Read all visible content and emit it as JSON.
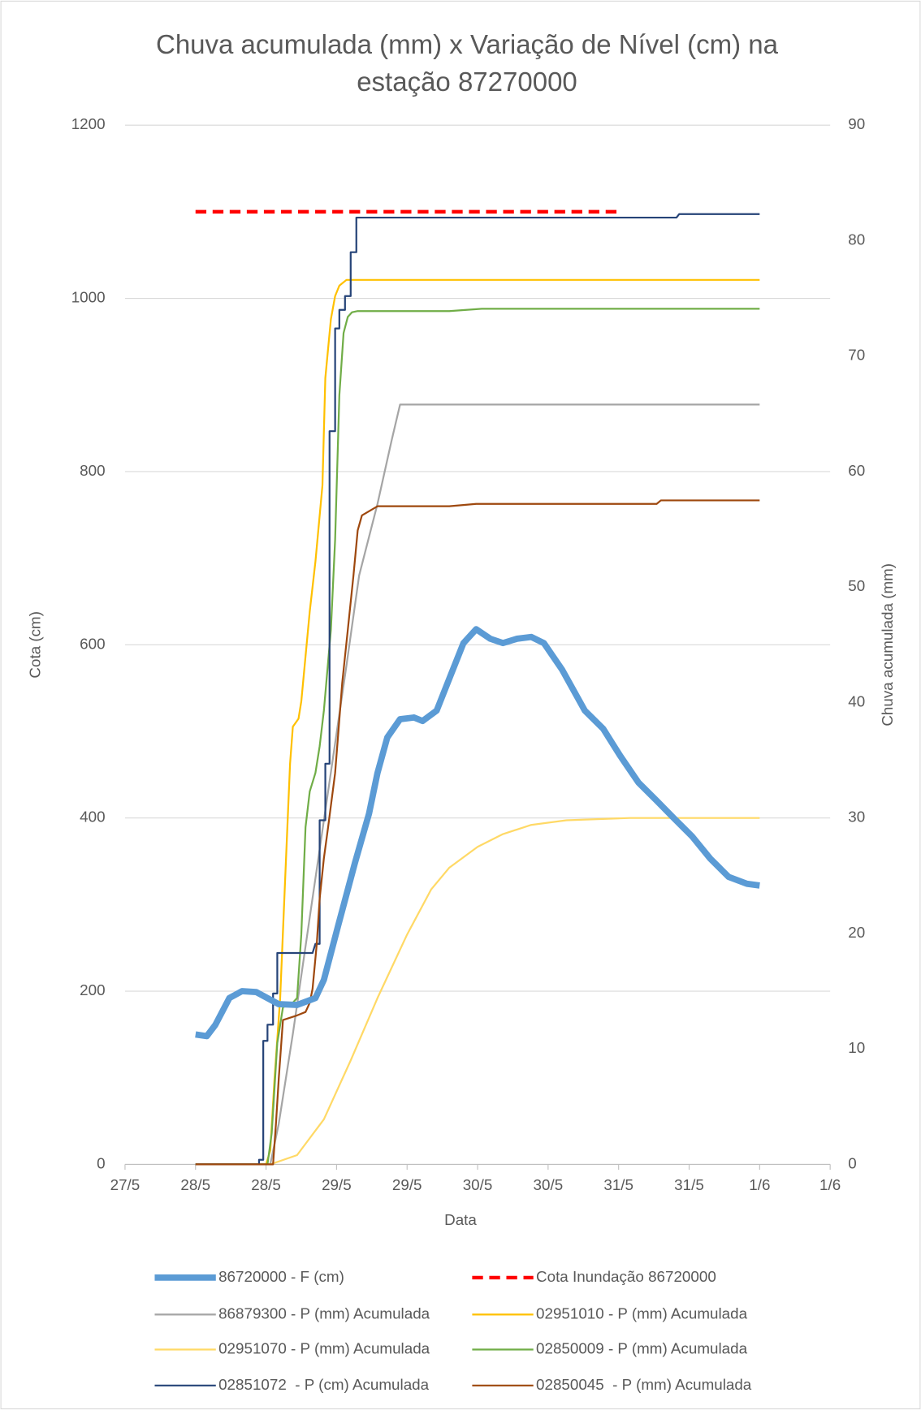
{
  "chart_data": {
    "type": "line",
    "title": "Chuva acumulada (mm) x Variação de Nível (cm) na estação 87270000",
    "x_label": "Data",
    "y_label": "Cota (cm)",
    "y2_label": "Chuva acumulada (mm)",
    "xlim": [
      27.5,
      32.5
    ],
    "xticks": [
      {
        "value": 27.5,
        "label": "27/5"
      },
      {
        "value": 28,
        "label": "28/5"
      },
      {
        "value": 28.5,
        "label": "28/5"
      },
      {
        "value": 29,
        "label": "29/5"
      },
      {
        "value": 29.5,
        "label": "29/5"
      },
      {
        "value": 30,
        "label": "30/5"
      },
      {
        "value": 30.5,
        "label": "30/5"
      },
      {
        "value": 31,
        "label": "31/5"
      },
      {
        "value": 31.5,
        "label": "31/5"
      },
      {
        "value": 32,
        "label": "1/6"
      },
      {
        "value": 32.5,
        "label": "1/6"
      }
    ],
    "ylim": [
      0,
      1200
    ],
    "yticks": [
      0,
      200,
      400,
      600,
      800,
      1000,
      1200
    ],
    "y2lim": [
      0,
      90
    ],
    "y2ticks": [
      0,
      10,
      20,
      30,
      40,
      50,
      60,
      70,
      80,
      90
    ],
    "grid": true,
    "legend": "bottom",
    "series": [
      {
        "name": "86720000 - F (cm)",
        "color": "#5b9bd5",
        "width": 7,
        "x": [
          28.0,
          28.08,
          28.14,
          28.24,
          28.33,
          28.43,
          28.59,
          28.72,
          28.85,
          28.91,
          29.01,
          29.13,
          29.23,
          29.29,
          29.36,
          29.45,
          29.55,
          29.61,
          29.71,
          29.8,
          29.9,
          29.99,
          30.09,
          30.18,
          30.28,
          30.38,
          30.47,
          30.6,
          30.76,
          30.89,
          31.01,
          31.14,
          31.27,
          31.39,
          31.52,
          31.65,
          31.78,
          31.91,
          32.0
        ],
        "values": [
          150,
          148,
          161,
          192,
          200,
          199,
          185,
          184,
          192,
          213,
          275,
          348,
          405,
          452,
          493,
          514,
          516,
          512,
          524,
          561,
          602,
          618,
          607,
          602,
          607,
          609,
          602,
          571,
          524,
          503,
          472,
          441,
          420,
          400,
          379,
          353,
          332,
          324,
          322
        ]
      },
      {
        "name": "Cota Inundação 86720000",
        "color": "#ff0000",
        "width": 4,
        "dash": true,
        "x": [
          28.0,
          31.0
        ],
        "values": [
          1100,
          1100
        ]
      },
      {
        "name": "86879300 - P (mm) Acumulada",
        "color": "#a5a5a5",
        "width": 2,
        "axis": "y2",
        "x": [
          28.0,
          28.53,
          28.59,
          28.69,
          28.81,
          28.94,
          29.07,
          29.16,
          29.29,
          29.39,
          29.45,
          29.52,
          32.0
        ],
        "values": [
          0,
          0,
          3.5,
          11.3,
          21.4,
          32.3,
          43.2,
          51.0,
          57.2,
          62.7,
          65.8,
          65.8,
          65.8
        ]
      },
      {
        "name": "02951010 - P (mm) Acumulada",
        "color": "#ffc000",
        "width": 2,
        "axis": "y2",
        "x": [
          28.0,
          28.5,
          28.53,
          28.56,
          28.6,
          28.64,
          28.67,
          28.69,
          28.73,
          28.75,
          28.78,
          28.81,
          28.85,
          28.9,
          28.92,
          28.96,
          28.99,
          29.02,
          29.07,
          29.16,
          32.0
        ],
        "values": [
          0,
          0,
          1.2,
          7.4,
          14.4,
          26.1,
          34.7,
          37.9,
          38.6,
          40.1,
          44.0,
          47.9,
          52.2,
          58.8,
          68.1,
          73.2,
          75.2,
          76.1,
          76.6,
          76.6,
          76.6
        ]
      },
      {
        "name": "02951070 - P (mm) Acumulada",
        "color": "#ffd966",
        "width": 2,
        "axis": "y2",
        "x": [
          28.0,
          28.53,
          28.72,
          28.91,
          29.1,
          29.29,
          29.5,
          29.67,
          29.8,
          30.0,
          30.18,
          30.38,
          30.63,
          31.08,
          32.0
        ],
        "values": [
          0,
          0,
          0.8,
          3.9,
          9.0,
          14.4,
          19.9,
          23.8,
          25.7,
          27.5,
          28.6,
          29.4,
          29.8,
          30.0,
          30.0
        ]
      },
      {
        "name": "02850009 - P (mm) Acumulada",
        "color": "#70ad47",
        "width": 2,
        "axis": "y2",
        "x": [
          28.0,
          28.51,
          28.54,
          28.58,
          28.62,
          28.69,
          28.72,
          28.75,
          28.78,
          28.81,
          28.85,
          28.88,
          28.91,
          28.96,
          28.99,
          29.02,
          29.05,
          29.08,
          29.11,
          29.15,
          29.8,
          30.03,
          32.0
        ],
        "values": [
          0,
          0,
          2.7,
          10.5,
          13.6,
          14.0,
          14.4,
          19.9,
          29.2,
          32.3,
          33.9,
          36.2,
          39.3,
          46.3,
          54.1,
          66.6,
          72.0,
          73.4,
          73.8,
          73.9,
          73.9,
          74.1,
          74.1
        ]
      },
      {
        "name": "02851072  - P (cm) Acumulada",
        "color": "#264478",
        "width": 2,
        "axis": "y2",
        "x": [
          28.0,
          28.45,
          28.45,
          28.48,
          28.48,
          28.51,
          28.51,
          28.55,
          28.55,
          28.58,
          28.58,
          28.83,
          28.85,
          28.88,
          28.88,
          28.92,
          28.92,
          28.95,
          28.95,
          28.99,
          28.99,
          29.02,
          29.02,
          29.06,
          29.06,
          29.1,
          29.1,
          29.14,
          29.14,
          29.16,
          31.41,
          31.43,
          32.0
        ],
        "values": [
          0,
          0,
          0.4,
          0.4,
          10.7,
          10.7,
          12.1,
          12.1,
          14.8,
          14.8,
          18.3,
          18.3,
          19.1,
          19.1,
          29.8,
          29.8,
          34.7,
          34.7,
          63.5,
          63.5,
          72.4,
          72.4,
          74.0,
          74.0,
          75.2,
          75.2,
          79.0,
          79.0,
          82.0,
          82.0,
          82.0,
          82.3,
          82.3
        ]
      },
      {
        "name": "02850045  - P (mm) Acumulada",
        "color": "#9e480e",
        "width": 2,
        "axis": "y2",
        "x": [
          28.0,
          28.55,
          28.57,
          28.59,
          28.62,
          28.72,
          28.78,
          28.81,
          28.83,
          28.86,
          28.88,
          28.91,
          28.94,
          28.99,
          29.04,
          29.08,
          29.12,
          29.15,
          29.18,
          29.29,
          29.8,
          29.99,
          31.27,
          31.3,
          32.0
        ],
        "values": [
          0,
          0,
          3.5,
          7.4,
          12.5,
          12.9,
          13.2,
          14.0,
          15.2,
          19.1,
          23.0,
          26.5,
          29.2,
          33.9,
          41.7,
          46.3,
          51.0,
          54.9,
          56.2,
          57.0,
          57.0,
          57.2,
          57.2,
          57.5,
          57.5
        ]
      }
    ]
  }
}
